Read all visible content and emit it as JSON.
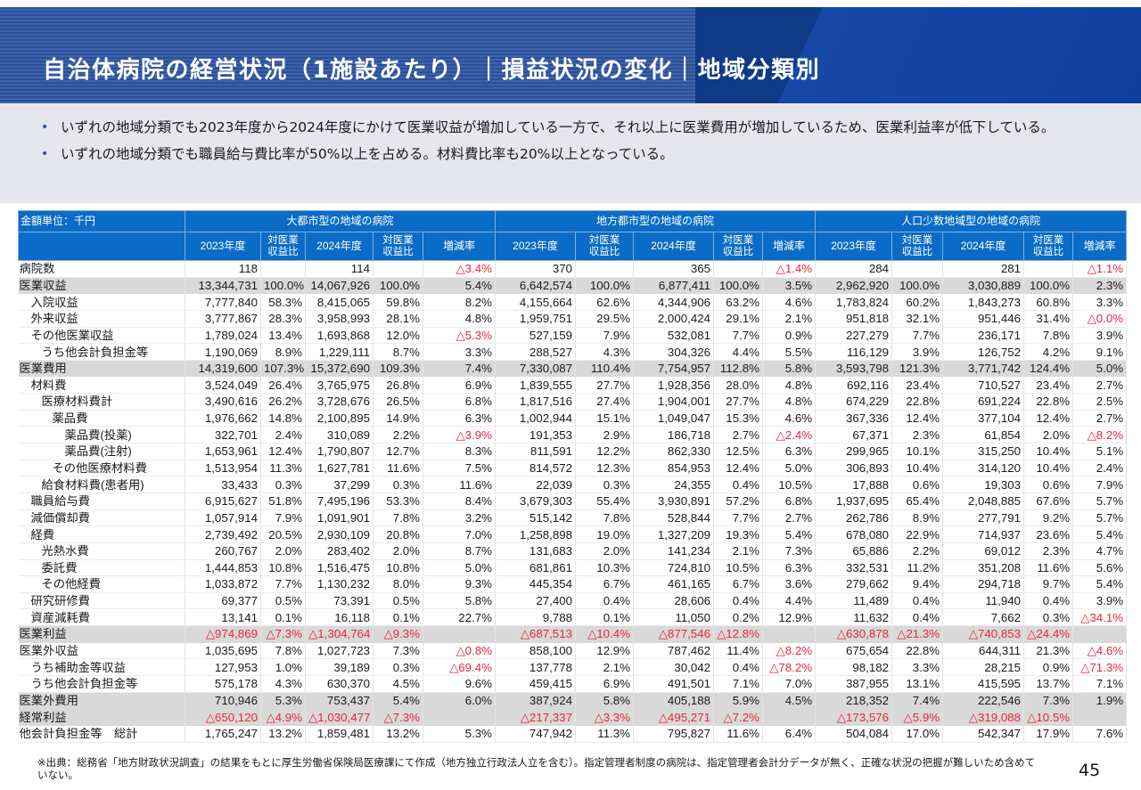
{
  "header": {
    "title": "自治体病院の経営状況（1施設あたり）｜損益状況の変化｜地域分類別"
  },
  "summary": {
    "bullets": [
      "いずれの地域分類でも2023年度から2024年度にかけて医業収益が増加している一方で、それ以上に医業費用が増加しているため、医業利益率が低下している。",
      "いずれの地域分類でも職員給与費比率が50%以上を占める。材料費比率も20%以上となっている。"
    ]
  },
  "table": {
    "unit_label": "金額単位：千円",
    "groups": [
      "大都市型の地域の病院",
      "地方都市型の地域の病院",
      "人口少数地域型の地域の病院"
    ],
    "subheaders": [
      "2023年度",
      "対医業収益比",
      "2024年度",
      "対医業収益比",
      "増減率"
    ],
    "rows": [
      {
        "label": "病院数",
        "indent": 0,
        "gray": false,
        "cells": [
          "118",
          "",
          "114",
          "",
          "△3.4%",
          "370",
          "",
          "365",
          "",
          "△1.4%",
          "284",
          "",
          "281",
          "",
          "△1.1%"
        ]
      },
      {
        "label": "医業収益",
        "indent": 0,
        "gray": true,
        "cells": [
          "13,344,731",
          "100.0%",
          "14,067,926",
          "100.0%",
          "5.4%",
          "6,642,574",
          "100.0%",
          "6,877,411",
          "100.0%",
          "3.5%",
          "2,962,920",
          "100.0%",
          "3,030,889",
          "100.0%",
          "2.3%"
        ]
      },
      {
        "label": "入院収益",
        "indent": 1,
        "gray": false,
        "cells": [
          "7,777,840",
          "58.3%",
          "8,415,065",
          "59.8%",
          "8.2%",
          "4,155,664",
          "62.6%",
          "4,344,906",
          "63.2%",
          "4.6%",
          "1,783,824",
          "60.2%",
          "1,843,273",
          "60.8%",
          "3.3%"
        ]
      },
      {
        "label": "外来収益",
        "indent": 1,
        "gray": false,
        "cells": [
          "3,777,867",
          "28.3%",
          "3,958,993",
          "28.1%",
          "4.8%",
          "1,959,751",
          "29.5%",
          "2,000,424",
          "29.1%",
          "2.1%",
          "951,818",
          "32.1%",
          "951,446",
          "31.4%",
          "△0.0%"
        ]
      },
      {
        "label": "その他医業収益",
        "indent": 1,
        "gray": false,
        "cells": [
          "1,789,024",
          "13.4%",
          "1,693,868",
          "12.0%",
          "△5.3%",
          "527,159",
          "7.9%",
          "532,081",
          "7.7%",
          "0.9%",
          "227,279",
          "7.7%",
          "236,171",
          "7.8%",
          "3.9%"
        ]
      },
      {
        "label": "うち他会計負担金等",
        "indent": 2,
        "gray": false,
        "cells": [
          "1,190,069",
          "8.9%",
          "1,229,111",
          "8.7%",
          "3.3%",
          "288,527",
          "4.3%",
          "304,326",
          "4.4%",
          "5.5%",
          "116,129",
          "3.9%",
          "126,752",
          "4.2%",
          "9.1%"
        ]
      },
      {
        "label": "医業費用",
        "indent": 0,
        "gray": true,
        "cells": [
          "14,319,600",
          "107.3%",
          "15,372,690",
          "109.3%",
          "7.4%",
          "7,330,087",
          "110.4%",
          "7,754,957",
          "112.8%",
          "5.8%",
          "3,593,798",
          "121.3%",
          "3,771,742",
          "124.4%",
          "5.0%"
        ]
      },
      {
        "label": "材料費",
        "indent": 1,
        "gray": false,
        "cells": [
          "3,524,049",
          "26.4%",
          "3,765,975",
          "26.8%",
          "6.9%",
          "1,839,555",
          "27.7%",
          "1,928,356",
          "28.0%",
          "4.8%",
          "692,116",
          "23.4%",
          "710,527",
          "23.4%",
          "2.7%"
        ]
      },
      {
        "label": "医療材料費計",
        "indent": 2,
        "gray": false,
        "cells": [
          "3,490,616",
          "26.2%",
          "3,728,676",
          "26.5%",
          "6.8%",
          "1,817,516",
          "27.4%",
          "1,904,001",
          "27.7%",
          "4.8%",
          "674,229",
          "22.8%",
          "691,224",
          "22.8%",
          "2.5%"
        ]
      },
      {
        "label": "薬品費",
        "indent": 3,
        "gray": false,
        "cells": [
          "1,976,662",
          "14.8%",
          "2,100,895",
          "14.9%",
          "6.3%",
          "1,002,944",
          "15.1%",
          "1,049,047",
          "15.3%",
          "4.6%",
          "367,336",
          "12.4%",
          "377,104",
          "12.4%",
          "2.7%"
        ]
      },
      {
        "label": "薬品費(投薬)",
        "indent": 4,
        "gray": false,
        "cells": [
          "322,701",
          "2.4%",
          "310,089",
          "2.2%",
          "△3.9%",
          "191,353",
          "2.9%",
          "186,718",
          "2.7%",
          "△2.4%",
          "67,371",
          "2.3%",
          "61,854",
          "2.0%",
          "△8.2%"
        ]
      },
      {
        "label": "薬品費(注射)",
        "indent": 4,
        "gray": false,
        "cells": [
          "1,653,961",
          "12.4%",
          "1,790,807",
          "12.7%",
          "8.3%",
          "811,591",
          "12.2%",
          "862,330",
          "12.5%",
          "6.3%",
          "299,965",
          "10.1%",
          "315,250",
          "10.4%",
          "5.1%"
        ]
      },
      {
        "label": "その他医療材料費",
        "indent": 3,
        "gray": false,
        "cells": [
          "1,513,954",
          "11.3%",
          "1,627,781",
          "11.6%",
          "7.5%",
          "814,572",
          "12.3%",
          "854,953",
          "12.4%",
          "5.0%",
          "306,893",
          "10.4%",
          "314,120",
          "10.4%",
          "2.4%"
        ]
      },
      {
        "label": "給食材料費(患者用)",
        "indent": 2,
        "gray": false,
        "cells": [
          "33,433",
          "0.3%",
          "37,299",
          "0.3%",
          "11.6%",
          "22,039",
          "0.3%",
          "24,355",
          "0.4%",
          "10.5%",
          "17,888",
          "0.6%",
          "19,303",
          "0.6%",
          "7.9%"
        ]
      },
      {
        "label": "職員給与費",
        "indent": 1,
        "gray": false,
        "cells": [
          "6,915,627",
          "51.8%",
          "7,495,196",
          "53.3%",
          "8.4%",
          "3,679,303",
          "55.4%",
          "3,930,891",
          "57.2%",
          "6.8%",
          "1,937,695",
          "65.4%",
          "2,048,885",
          "67.6%",
          "5.7%"
        ]
      },
      {
        "label": "減価償却費",
        "indent": 1,
        "gray": false,
        "cells": [
          "1,057,914",
          "7.9%",
          "1,091,901",
          "7.8%",
          "3.2%",
          "515,142",
          "7.8%",
          "528,844",
          "7.7%",
          "2.7%",
          "262,786",
          "8.9%",
          "277,791",
          "9.2%",
          "5.7%"
        ]
      },
      {
        "label": "経費",
        "indent": 1,
        "gray": false,
        "cells": [
          "2,739,492",
          "20.5%",
          "2,930,109",
          "20.8%",
          "7.0%",
          "1,258,898",
          "19.0%",
          "1,327,209",
          "19.3%",
          "5.4%",
          "678,080",
          "22.9%",
          "714,937",
          "23.6%",
          "5.4%"
        ]
      },
      {
        "label": "光熱水費",
        "indent": 2,
        "gray": false,
        "cells": [
          "260,767",
          "2.0%",
          "283,402",
          "2.0%",
          "8.7%",
          "131,683",
          "2.0%",
          "141,234",
          "2.1%",
          "7.3%",
          "65,886",
          "2.2%",
          "69,012",
          "2.3%",
          "4.7%"
        ]
      },
      {
        "label": "委託費",
        "indent": 2,
        "gray": false,
        "cells": [
          "1,444,853",
          "10.8%",
          "1,516,475",
          "10.8%",
          "5.0%",
          "681,861",
          "10.3%",
          "724,810",
          "10.5%",
          "6.3%",
          "332,531",
          "11.2%",
          "351,208",
          "11.6%",
          "5.6%"
        ]
      },
      {
        "label": "その他経費",
        "indent": 2,
        "gray": false,
        "cells": [
          "1,033,872",
          "7.7%",
          "1,130,232",
          "8.0%",
          "9.3%",
          "445,354",
          "6.7%",
          "461,165",
          "6.7%",
          "3.6%",
          "279,662",
          "9.4%",
          "294,718",
          "9.7%",
          "5.4%"
        ]
      },
      {
        "label": "研究研修費",
        "indent": 1,
        "gray": false,
        "cells": [
          "69,377",
          "0.5%",
          "73,391",
          "0.5%",
          "5.8%",
          "27,400",
          "0.4%",
          "28,606",
          "0.4%",
          "4.4%",
          "11,489",
          "0.4%",
          "11,940",
          "0.4%",
          "3.9%"
        ]
      },
      {
        "label": "資産減耗費",
        "indent": 1,
        "gray": false,
        "cells": [
          "13,141",
          "0.1%",
          "16,118",
          "0.1%",
          "22.7%",
          "9,788",
          "0.1%",
          "11,050",
          "0.2%",
          "12.9%",
          "11,632",
          "0.4%",
          "7,662",
          "0.3%",
          "△34.1%"
        ]
      },
      {
        "label": "医業利益",
        "indent": 0,
        "gray": true,
        "cells": [
          "△974,869",
          "△7.3%",
          "△1,304,764",
          "△9.3%",
          "",
          "△687,513",
          "△10.4%",
          "△877,546",
          "△12.8%",
          "",
          "△630,878",
          "△21.3%",
          "△740,853",
          "△24.4%",
          ""
        ]
      },
      {
        "label": "医業外収益",
        "indent": 0,
        "gray": false,
        "cells": [
          "1,035,695",
          "7.8%",
          "1,027,723",
          "7.3%",
          "△0.8%",
          "858,100",
          "12.9%",
          "787,462",
          "11.4%",
          "△8.2%",
          "675,654",
          "22.8%",
          "644,311",
          "21.3%",
          "△4.6%"
        ]
      },
      {
        "label": "うち補助金等収益",
        "indent": 1,
        "gray": false,
        "cells": [
          "127,953",
          "1.0%",
          "39,189",
          "0.3%",
          "△69.4%",
          "137,778",
          "2.1%",
          "30,042",
          "0.4%",
          "△78.2%",
          "98,182",
          "3.3%",
          "28,215",
          "0.9%",
          "△71.3%"
        ]
      },
      {
        "label": "うち他会計負担金等",
        "indent": 1,
        "gray": false,
        "cells": [
          "575,178",
          "4.3%",
          "630,370",
          "4.5%",
          "9.6%",
          "459,415",
          "6.9%",
          "491,501",
          "7.1%",
          "7.0%",
          "387,955",
          "13.1%",
          "415,595",
          "13.7%",
          "7.1%"
        ]
      },
      {
        "label": "医業外費用",
        "indent": 0,
        "gray": true,
        "cells": [
          "710,946",
          "5.3%",
          "753,437",
          "5.4%",
          "6.0%",
          "387,924",
          "5.8%",
          "405,188",
          "5.9%",
          "4.5%",
          "218,352",
          "7.4%",
          "222,546",
          "7.3%",
          "1.9%"
        ]
      },
      {
        "label": "経常利益",
        "indent": 0,
        "gray": true,
        "cells": [
          "△650,120",
          "△4.9%",
          "△1,030,477",
          "△7.3%",
          "",
          "△217,337",
          "△3.3%",
          "△495,271",
          "△7.2%",
          "",
          "△173,576",
          "△5.9%",
          "△319,088",
          "△10.5%",
          ""
        ]
      },
      {
        "label": "他会計負担金等　総計",
        "indent": 0,
        "gray": false,
        "cells": [
          "1,765,247",
          "13.2%",
          "1,859,481",
          "13.2%",
          "5.3%",
          "747,942",
          "11.3%",
          "795,827",
          "11.6%",
          "6.4%",
          "504,084",
          "17.0%",
          "542,347",
          "17.9%",
          "7.6%"
        ]
      }
    ]
  },
  "footer": {
    "note": "※出典：総務省「地方財政状況調査」の結果をもとに厚生労働省保険局医療課にて作成（地方独立行政法人立を含む）。指定管理者制度の病院は、指定管理者会計分データが無く、正確な状況の把握が難しいため含めていない。",
    "page_number": "45"
  },
  "colors": {
    "header_blue": "#0a6cc6",
    "negative_red": "#e8283a",
    "highlight_gray": "#d9d9d9"
  }
}
